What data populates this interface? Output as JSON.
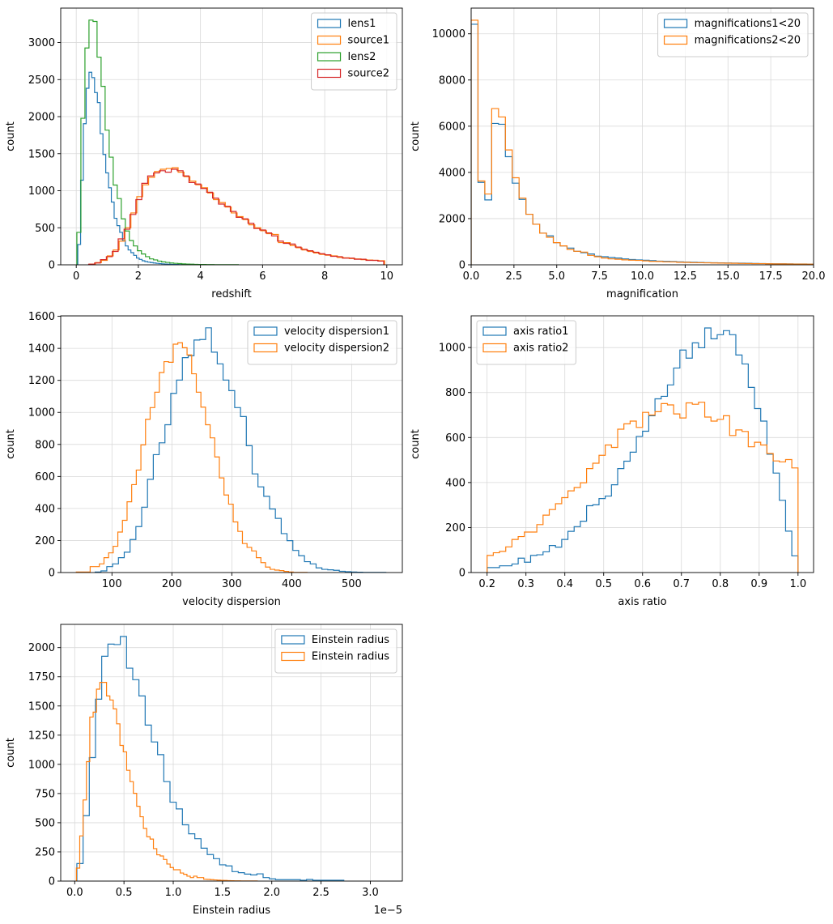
{
  "colors": {
    "c0": "#1f77b4",
    "c1": "#ff7f0e",
    "c2": "#2ca02c",
    "c3": "#d62728",
    "grid": "#d9d9d9"
  },
  "chart_data": [
    {
      "type": "histogram-step",
      "xlabel": "redshift",
      "ylabel": "count",
      "xlim": [
        -0.5,
        10.5
      ],
      "ylim": [
        0,
        3465
      ],
      "grid": true,
      "legend": "upper-right",
      "xticks": [
        0,
        2,
        4,
        6,
        8,
        10
      ],
      "xtick_labels": [
        "0",
        "2",
        "4",
        "6",
        "8",
        "10"
      ],
      "yticks": [
        0,
        500,
        1000,
        1500,
        2000,
        2500,
        3000
      ],
      "ytick_labels": [
        "0",
        "500",
        "1000",
        "1500",
        "2000",
        "2500",
        "3000"
      ],
      "series": [
        {
          "name": "lens1",
          "color": "#1f77b4",
          "start": 0.05,
          "width": 0.09,
          "counts": [
            274,
            1142,
            1905,
            2383,
            2599,
            2526,
            2325,
            2190,
            1770,
            1489,
            1241,
            1040,
            847,
            628,
            529,
            438,
            328,
            255,
            200,
            164,
            128,
            91,
            73,
            55,
            44,
            36,
            30,
            25,
            20,
            16,
            13,
            10,
            8,
            6,
            5,
            4,
            3,
            2,
            2,
            1
          ]
        },
        {
          "name": "source1",
          "color": "#ff7f0e",
          "start": 0.43,
          "width": 0.19,
          "counts": [
            10,
            30,
            60,
            120,
            200,
            320,
            500,
            700,
            920,
            1080,
            1180,
            1260,
            1290,
            1300,
            1310,
            1250,
            1190,
            1130,
            1080,
            1040,
            970,
            880,
            840,
            780,
            700,
            650,
            610,
            540,
            500,
            460,
            420,
            410,
            300,
            300,
            260,
            230,
            200,
            180,
            160,
            140,
            130,
            120,
            100,
            95,
            85,
            80,
            70,
            65,
            60,
            55
          ]
        },
        {
          "name": "lens2",
          "color": "#2ca02c",
          "start": 0.02,
          "width": 0.13,
          "counts": [
            438,
            1978,
            2927,
            3303,
            3285,
            2803,
            2409,
            1818,
            1453,
            1077,
            894,
            620,
            456,
            328,
            255,
            190,
            146,
            110,
            80,
            66,
            50,
            40,
            32,
            25,
            20,
            16,
            12,
            10,
            8,
            6,
            5,
            4,
            3,
            3,
            2,
            2,
            1,
            1,
            1,
            1
          ]
        },
        {
          "name": "source2",
          "color": "#d62728",
          "start": 0.4,
          "width": 0.19,
          "counts": [
            8,
            25,
            70,
            110,
            180,
            350,
            480,
            680,
            880,
            1100,
            1200,
            1240,
            1270,
            1250,
            1290,
            1270,
            1200,
            1110,
            1090,
            1030,
            980,
            900,
            820,
            790,
            720,
            640,
            620,
            560,
            490,
            470,
            430,
            390,
            320,
            290,
            280,
            240,
            210,
            190,
            170,
            150,
            135,
            115,
            110,
            90,
            90,
            75,
            75,
            60,
            60,
            50
          ]
        }
      ]
    },
    {
      "type": "histogram-step",
      "xlabel": "magnification",
      "ylabel": "count",
      "xlim": [
        0,
        20
      ],
      "ylim": [
        0,
        11112
      ],
      "grid": true,
      "legend": "upper-right",
      "xticks": [
        0,
        2.5,
        5,
        7.5,
        10,
        12.5,
        15,
        17.5,
        20
      ],
      "xtick_labels": [
        "0.0",
        "2.5",
        "5.0",
        "7.5",
        "10.0",
        "12.5",
        "15.0",
        "17.5",
        "20.0"
      ],
      "yticks": [
        0,
        2000,
        4000,
        6000,
        8000,
        10000
      ],
      "ytick_labels": [
        "0",
        "2000",
        "4000",
        "6000",
        "8000",
        "10000"
      ],
      "series": [
        {
          "name": "magnifications1<20",
          "color": "#1f77b4",
          "start": 0,
          "width": 0.4,
          "counts": [
            10413,
            3568,
            2808,
            6119,
            6084,
            4680,
            3533,
            2831,
            2188,
            1755,
            1369,
            1252,
            959,
            819,
            725,
            585,
            527,
            468,
            374,
            351,
            316,
            293,
            257,
            230,
            210,
            200,
            180,
            160,
            150,
            140,
            130,
            120,
            110,
            100,
            95,
            90,
            85,
            80,
            75,
            70,
            65,
            60,
            55,
            50,
            45,
            45,
            40,
            35,
            35,
            30
          ]
        },
        {
          "name": "magnifications2<20",
          "color": "#ff7f0e",
          "start": 0,
          "width": 0.4,
          "counts": [
            10589,
            3627,
            3065,
            6763,
            6400,
            4973,
            3767,
            2890,
            2188,
            1755,
            1369,
            1193,
            959,
            819,
            667,
            585,
            550,
            410,
            351,
            293,
            257,
            240,
            215,
            200,
            190,
            170,
            150,
            145,
            130,
            125,
            110,
            105,
            95,
            90,
            85,
            80,
            75,
            70,
            65,
            60,
            55,
            50,
            50,
            45,
            40,
            40,
            35,
            30,
            30,
            25
          ]
        }
      ]
    },
    {
      "type": "histogram-step",
      "xlabel": "velocity dispersion",
      "ylabel": "count",
      "xlim": [
        14.5,
        584.5
      ],
      "ylim": [
        0,
        1603
      ],
      "grid": true,
      "legend": "upper-right",
      "xticks": [
        100,
        200,
        300,
        400,
        500
      ],
      "xtick_labels": [
        "100",
        "200",
        "300",
        "400",
        "500"
      ],
      "yticks": [
        0,
        200,
        400,
        600,
        800,
        1000,
        1200,
        1400,
        1600
      ],
      "ytick_labels": [
        "0",
        "200",
        "400",
        "600",
        "800",
        "1000",
        "1200",
        "1400",
        "1600"
      ],
      "series": [
        {
          "name": "velocity dispersion1",
          "color": "#1f77b4",
          "start": 72,
          "width": 9.7,
          "counts": [
            3,
            10,
            37,
            54,
            93,
            127,
            206,
            287,
            408,
            582,
            736,
            810,
            923,
            1119,
            1202,
            1342,
            1354,
            1452,
            1455,
            1528,
            1376,
            1303,
            1202,
            1136,
            1030,
            974,
            792,
            616,
            535,
            476,
            397,
            338,
            243,
            199,
            138,
            105,
            68,
            54,
            29,
            20,
            17,
            14,
            8,
            5,
            3,
            2,
            1,
            1,
            1,
            1
          ]
        },
        {
          "name": "velocity dispersion2",
          "color": "#ff7f0e",
          "start": 40.5,
          "width": 7.7,
          "counts": [
            3,
            3,
            3,
            37,
            37,
            54,
            93,
            123,
            164,
            253,
            326,
            442,
            549,
            640,
            797,
            957,
            1030,
            1126,
            1249,
            1317,
            1313,
            1426,
            1435,
            1404,
            1359,
            1241,
            1126,
            1033,
            923,
            841,
            722,
            591,
            484,
            427,
            316,
            257,
            181,
            157,
            135,
            93,
            62,
            34,
            20,
            15,
            12,
            7,
            3,
            1,
            1,
            1
          ]
        }
      ]
    },
    {
      "type": "histogram-step",
      "xlabel": "axis ratio",
      "ylabel": "count",
      "xlim": [
        0.159,
        1.04
      ],
      "ylim": [
        0,
        1141
      ],
      "grid": true,
      "legend": "upper-left",
      "xticks": [
        0.2,
        0.3,
        0.4,
        0.5,
        0.6,
        0.7,
        0.8,
        0.9,
        1.0
      ],
      "xtick_labels": [
        "0.2",
        "0.3",
        "0.4",
        "0.5",
        "0.6",
        "0.7",
        "0.8",
        "0.9",
        "1.0"
      ],
      "yticks": [
        0,
        200,
        400,
        600,
        800,
        1000
      ],
      "ytick_labels": [
        "0",
        "200",
        "400",
        "600",
        "800",
        "1000"
      ],
      "series": [
        {
          "name": "axis ratio1",
          "color": "#1f77b4",
          "start": 0.2,
          "width": 0.016,
          "counts": [
            22,
            22,
            30,
            30,
            38,
            64,
            46,
            76,
            79,
            92,
            120,
            113,
            147,
            183,
            204,
            228,
            297,
            301,
            329,
            340,
            390,
            462,
            495,
            535,
            605,
            628,
            697,
            772,
            783,
            834,
            909,
            989,
            953,
            1021,
            999,
            1087,
            1039,
            1057,
            1075,
            1057,
            967,
            927,
            823,
            729,
            673,
            526,
            442,
            321,
            184,
            74
          ]
        },
        {
          "name": "axis ratio2",
          "color": "#ff7f0e",
          "start": 0.2,
          "width": 0.016,
          "counts": [
            76,
            88,
            94,
            114,
            147,
            160,
            180,
            180,
            213,
            255,
            280,
            306,
            333,
            363,
            378,
            399,
            462,
            486,
            521,
            567,
            556,
            637,
            661,
            673,
            645,
            712,
            700,
            715,
            751,
            745,
            705,
            687,
            754,
            748,
            757,
            691,
            673,
            681,
            697,
            609,
            634,
            627,
            559,
            579,
            567,
            529,
            496,
            492,
            502,
            465
          ]
        }
      ]
    },
    {
      "type": "histogram-step",
      "xlabel": "Einstein radius",
      "ylabel": "count",
      "x_offset_text": "1e−5",
      "xlim": [
        -0.142,
        3.325
      ],
      "ylim": [
        0,
        2199
      ],
      "grid": true,
      "legend": "upper-right",
      "xticks": [
        0,
        0.5,
        1.0,
        1.5,
        2.0,
        2.5,
        3.0
      ],
      "xtick_labels": [
        "0.0",
        "0.5",
        "1.0",
        "1.5",
        "2.0",
        "2.5",
        "3.0"
      ],
      "yticks": [
        0,
        250,
        500,
        750,
        1000,
        1250,
        1500,
        1750,
        2000
      ],
      "ytick_labels": [
        "0",
        "250",
        "500",
        "750",
        "1000",
        "1250",
        "1500",
        "1750",
        "2000"
      ],
      "series": [
        {
          "name": "Einstein radius",
          "color": "#1f77b4",
          "start": 0.022,
          "width": 0.063,
          "counts": [
            150,
            560,
            1058,
            1558,
            1926,
            2030,
            2026,
            2095,
            1824,
            1725,
            1586,
            1336,
            1192,
            1083,
            852,
            676,
            618,
            482,
            405,
            363,
            282,
            227,
            192,
            139,
            130,
            81,
            72,
            60,
            53,
            62,
            30,
            19,
            12,
            12,
            12,
            12,
            7,
            14,
            7,
            7,
            7,
            7,
            7
          ]
        },
        {
          "name": "Einstein radius",
          "color": "#ff7f0e",
          "start": 0.017,
          "width": 0.034,
          "counts": [
            111,
            387,
            695,
            1023,
            1405,
            1447,
            1644,
            1702,
            1702,
            1586,
            1551,
            1475,
            1347,
            1162,
            1107,
            949,
            852,
            752,
            641,
            551,
            451,
            380,
            360,
            278,
            225,
            215,
            185,
            146,
            116,
            97,
            97,
            69,
            58,
            42,
            30,
            42,
            30,
            30,
            16,
            15,
            12,
            10,
            8,
            6,
            5,
            4,
            3,
            2,
            2,
            1,
            1,
            1,
            1,
            1
          ]
        }
      ]
    }
  ]
}
